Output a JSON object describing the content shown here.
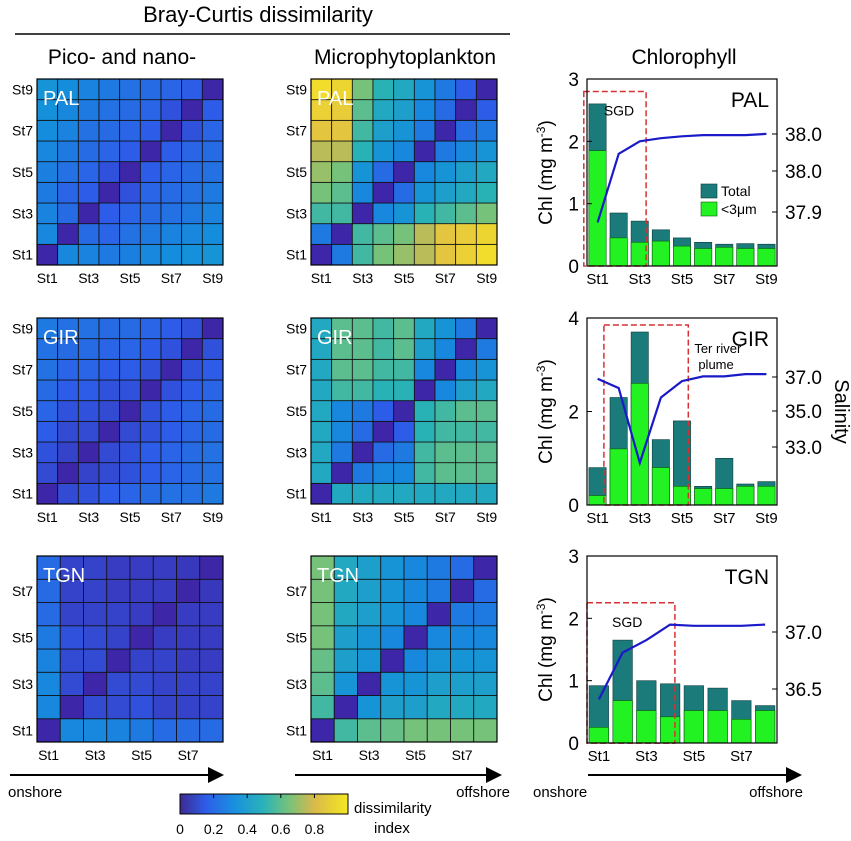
{
  "header": {
    "main_title": "Bray-Curtis dissimilarity",
    "col_titles": [
      "Pico- and nano-",
      "Microphytoplankton",
      "Chlorophyll"
    ]
  },
  "axis": {
    "onshore": "onshore",
    "offshore": "offshore"
  },
  "colorbar": {
    "label_line1": "dissimilarity",
    "label_line2": "index",
    "ticks": [
      "0",
      "0.2",
      "0.4",
      "0.6",
      "0.8"
    ],
    "range": [
      0,
      1
    ]
  },
  "chart_data": [
    {
      "type": "heatmap",
      "title": "PAL",
      "group": "Pico- and nano-",
      "xticks": [
        "St1",
        "St3",
        "St5",
        "St7",
        "St9"
      ],
      "yticks": [
        "St1",
        "St3",
        "St5",
        "St7",
        "St9"
      ],
      "values": [
        [
          0.0,
          0.3,
          0.28,
          0.25,
          0.27,
          0.3,
          0.32,
          0.33,
          0.35
        ],
        [
          0.3,
          0.0,
          0.2,
          0.18,
          0.22,
          0.25,
          0.28,
          0.3,
          0.32
        ],
        [
          0.28,
          0.2,
          0.0,
          0.15,
          0.18,
          0.2,
          0.22,
          0.25,
          0.28
        ],
        [
          0.25,
          0.18,
          0.15,
          0.0,
          0.12,
          0.18,
          0.2,
          0.22,
          0.25
        ],
        [
          0.27,
          0.22,
          0.18,
          0.12,
          0.0,
          0.15,
          0.18,
          0.2,
          0.22
        ],
        [
          0.3,
          0.25,
          0.2,
          0.18,
          0.15,
          0.0,
          0.15,
          0.18,
          0.2
        ],
        [
          0.32,
          0.28,
          0.22,
          0.2,
          0.18,
          0.15,
          0.0,
          0.12,
          0.18
        ],
        [
          0.33,
          0.3,
          0.25,
          0.22,
          0.2,
          0.18,
          0.12,
          0.0,
          0.15
        ],
        [
          0.35,
          0.32,
          0.28,
          0.25,
          0.22,
          0.2,
          0.18,
          0.15,
          0.0
        ]
      ]
    },
    {
      "type": "heatmap",
      "title": "PAL",
      "group": "Microphytoplankton",
      "xticks": [
        "St1",
        "St3",
        "St5",
        "St7",
        "St9"
      ],
      "yticks": [
        "St1",
        "St3",
        "St5",
        "St7",
        "St9"
      ],
      "values": [
        [
          0.0,
          0.25,
          0.55,
          0.65,
          0.7,
          0.75,
          0.85,
          0.9,
          0.95
        ],
        [
          0.25,
          0.0,
          0.55,
          0.6,
          0.65,
          0.75,
          0.85,
          0.88,
          0.92
        ],
        [
          0.55,
          0.55,
          0.0,
          0.3,
          0.35,
          0.5,
          0.55,
          0.6,
          0.65
        ],
        [
          0.65,
          0.6,
          0.3,
          0.0,
          0.2,
          0.35,
          0.4,
          0.45,
          0.5
        ],
        [
          0.7,
          0.65,
          0.35,
          0.2,
          0.0,
          0.3,
          0.35,
          0.4,
          0.45
        ],
        [
          0.75,
          0.75,
          0.5,
          0.35,
          0.3,
          0.0,
          0.25,
          0.3,
          0.35
        ],
        [
          0.85,
          0.85,
          0.55,
          0.4,
          0.35,
          0.25,
          0.0,
          0.2,
          0.25
        ],
        [
          0.9,
          0.88,
          0.6,
          0.45,
          0.4,
          0.3,
          0.2,
          0.0,
          0.15
        ],
        [
          0.95,
          0.92,
          0.65,
          0.5,
          0.45,
          0.35,
          0.25,
          0.15,
          0.0
        ]
      ]
    },
    {
      "type": "bar",
      "title": "PAL",
      "group": "Chlorophyll",
      "ylabel": "Chl (mg m-3)",
      "ylabel_main": "Chl (mg m",
      "ylabel_sup": "-3",
      "ylabel_close": ")",
      "ylim": [
        0,
        3
      ],
      "yticks": [
        "0",
        "1",
        "2",
        "3"
      ],
      "xticks": [
        "St1",
        "St3",
        "St5",
        "St7",
        "St9"
      ],
      "right_ticks": [
        "38.0",
        "38.0",
        "37.9"
      ],
      "right_label": "",
      "box_label": "SGD",
      "legend": [
        "Total",
        "<3μm"
      ],
      "series": [
        {
          "name": "Total",
          "values": [
            2.6,
            0.85,
            0.72,
            0.58,
            0.45,
            0.38,
            0.35,
            0.36,
            0.35
          ]
        },
        {
          "name": "<3μm",
          "values": [
            1.85,
            0.45,
            0.38,
            0.4,
            0.32,
            0.28,
            0.3,
            0.28,
            0.28
          ]
        }
      ],
      "salinity": [
        0.7,
        1.8,
        2.0,
        2.05,
        2.08,
        2.1,
        2.1,
        2.1,
        2.12
      ]
    },
    {
      "type": "heatmap",
      "title": "GIR",
      "group": "Pico- and nano-",
      "xticks": [
        "St1",
        "St3",
        "St5",
        "St7",
        "St9"
      ],
      "yticks": [
        "St1",
        "St3",
        "St5",
        "St7",
        "St9"
      ],
      "values": [
        [
          0.0,
          0.1,
          0.12,
          0.15,
          0.18,
          0.2,
          0.22,
          0.22,
          0.25
        ],
        [
          0.1,
          0.0,
          0.08,
          0.1,
          0.12,
          0.15,
          0.18,
          0.2,
          0.22
        ],
        [
          0.12,
          0.08,
          0.0,
          0.1,
          0.12,
          0.15,
          0.18,
          0.2,
          0.22
        ],
        [
          0.15,
          0.1,
          0.1,
          0.0,
          0.1,
          0.12,
          0.15,
          0.18,
          0.2
        ],
        [
          0.18,
          0.12,
          0.12,
          0.1,
          0.0,
          0.12,
          0.15,
          0.18,
          0.2
        ],
        [
          0.2,
          0.15,
          0.15,
          0.12,
          0.12,
          0.0,
          0.12,
          0.15,
          0.18
        ],
        [
          0.22,
          0.18,
          0.18,
          0.15,
          0.15,
          0.12,
          0.0,
          0.12,
          0.15
        ],
        [
          0.22,
          0.2,
          0.2,
          0.18,
          0.18,
          0.15,
          0.12,
          0.0,
          0.12
        ],
        [
          0.25,
          0.22,
          0.22,
          0.2,
          0.2,
          0.18,
          0.15,
          0.12,
          0.0
        ]
      ]
    },
    {
      "type": "heatmap",
      "title": "GIR",
      "group": "Microphytoplankton",
      "xticks": [
        "St1",
        "St3",
        "St5",
        "St7",
        "St9"
      ],
      "yticks": [
        "St1",
        "St3",
        "St5",
        "St7",
        "St9"
      ],
      "values": [
        [
          0.0,
          0.45,
          0.45,
          0.45,
          0.45,
          0.45,
          0.45,
          0.45,
          0.45
        ],
        [
          0.45,
          0.0,
          0.25,
          0.3,
          0.3,
          0.55,
          0.6,
          0.6,
          0.6
        ],
        [
          0.45,
          0.25,
          0.0,
          0.2,
          0.25,
          0.55,
          0.6,
          0.6,
          0.6
        ],
        [
          0.45,
          0.3,
          0.2,
          0.0,
          0.15,
          0.5,
          0.55,
          0.55,
          0.55
        ],
        [
          0.45,
          0.3,
          0.25,
          0.15,
          0.0,
          0.5,
          0.55,
          0.6,
          0.6
        ],
        [
          0.45,
          0.55,
          0.55,
          0.5,
          0.5,
          0.0,
          0.3,
          0.4,
          0.45
        ],
        [
          0.45,
          0.6,
          0.6,
          0.55,
          0.55,
          0.3,
          0.0,
          0.3,
          0.35
        ],
        [
          0.45,
          0.6,
          0.6,
          0.55,
          0.6,
          0.4,
          0.3,
          0.0,
          0.25
        ],
        [
          0.45,
          0.6,
          0.6,
          0.55,
          0.6,
          0.45,
          0.35,
          0.25,
          0.0
        ]
      ]
    },
    {
      "type": "bar",
      "title": "GIR",
      "group": "Chlorophyll",
      "ylabel": "Chl (mg m-3)",
      "ylabel_main": "Chl (mg m",
      "ylabel_sup": "-3",
      "ylabel_close": ")",
      "ylim": [
        0,
        4
      ],
      "yticks": [
        "0",
        "2",
        "4"
      ],
      "xticks": [
        "St1",
        "St3",
        "St5",
        "St7",
        "St9"
      ],
      "right_ticks": [
        "37.0",
        "35.0",
        "33.0"
      ],
      "right_label": "Salinity",
      "box_label": "Ter river plume",
      "box_label_line1": "Ter river",
      "box_label_line2": "plume",
      "series": [
        {
          "name": "Total",
          "values": [
            0.8,
            2.3,
            3.7,
            1.4,
            1.8,
            0.4,
            1.0,
            0.45,
            0.5
          ]
        },
        {
          "name": "<3μm",
          "values": [
            0.2,
            1.2,
            2.6,
            0.8,
            0.4,
            0.35,
            0.35,
            0.4,
            0.4
          ]
        }
      ],
      "salinity": [
        2.7,
        2.5,
        0.9,
        2.3,
        2.65,
        2.75,
        2.75,
        2.8,
        2.8
      ]
    },
    {
      "type": "heatmap",
      "title": "TGN",
      "group": "Pico- and nano-",
      "xticks": [
        "St1",
        "St3",
        "St5",
        "St7"
      ],
      "yticks": [
        "St1",
        "St3",
        "St5",
        "St7"
      ],
      "values": [
        [
          0.0,
          0.3,
          0.3,
          0.28,
          0.25,
          0.2,
          0.2,
          0.2
        ],
        [
          0.3,
          0.0,
          0.1,
          0.1,
          0.12,
          0.08,
          0.08,
          0.08
        ],
        [
          0.3,
          0.1,
          0.0,
          0.1,
          0.1,
          0.08,
          0.08,
          0.08
        ],
        [
          0.28,
          0.1,
          0.1,
          0.0,
          0.08,
          0.08,
          0.06,
          0.06
        ],
        [
          0.25,
          0.12,
          0.1,
          0.08,
          0.0,
          0.06,
          0.06,
          0.06
        ],
        [
          0.2,
          0.08,
          0.08,
          0.08,
          0.06,
          0.0,
          0.06,
          0.06
        ],
        [
          0.2,
          0.08,
          0.08,
          0.06,
          0.06,
          0.06,
          0.0,
          0.05
        ],
        [
          0.2,
          0.08,
          0.08,
          0.06,
          0.06,
          0.06,
          0.05,
          0.0
        ]
      ]
    },
    {
      "type": "heatmap",
      "title": "TGN",
      "group": "Microphytoplankton",
      "xticks": [
        "St1",
        "St3",
        "St5",
        "St7"
      ],
      "yticks": [
        "St1",
        "St3",
        "St5",
        "St7"
      ],
      "values": [
        [
          0.0,
          0.55,
          0.6,
          0.62,
          0.65,
          0.65,
          0.65,
          0.65
        ],
        [
          0.55,
          0.0,
          0.35,
          0.4,
          0.4,
          0.45,
          0.45,
          0.45
        ],
        [
          0.6,
          0.35,
          0.0,
          0.35,
          0.35,
          0.4,
          0.4,
          0.4
        ],
        [
          0.62,
          0.4,
          0.35,
          0.0,
          0.3,
          0.35,
          0.35,
          0.35
        ],
        [
          0.65,
          0.4,
          0.35,
          0.3,
          0.0,
          0.3,
          0.3,
          0.3
        ],
        [
          0.65,
          0.45,
          0.4,
          0.35,
          0.3,
          0.0,
          0.25,
          0.25
        ],
        [
          0.65,
          0.45,
          0.4,
          0.35,
          0.3,
          0.25,
          0.0,
          0.2
        ],
        [
          0.65,
          0.45,
          0.4,
          0.35,
          0.3,
          0.25,
          0.2,
          0.0
        ]
      ]
    },
    {
      "type": "bar",
      "title": "TGN",
      "group": "Chlorophyll",
      "ylabel": "Chl (mg m-3)",
      "ylabel_main": "Chl (mg m",
      "ylabel_sup": "-3",
      "ylabel_close": ")",
      "ylim": [
        0,
        3
      ],
      "yticks": [
        "0",
        "1",
        "2",
        "3"
      ],
      "xticks": [
        "St1",
        "St3",
        "St5",
        "St7"
      ],
      "right_ticks": [
        "37.0",
        "36.5"
      ],
      "right_label": "",
      "box_label": "SGD",
      "series": [
        {
          "name": "Total",
          "values": [
            0.92,
            1.65,
            1.0,
            0.95,
            0.92,
            0.88,
            0.68,
            0.6
          ]
        },
        {
          "name": "<3μm",
          "values": [
            0.25,
            0.68,
            0.52,
            0.42,
            0.52,
            0.52,
            0.38,
            0.52
          ]
        }
      ],
      "salinity": [
        0.7,
        1.45,
        1.65,
        1.9,
        1.88,
        1.88,
        1.88,
        1.9
      ]
    }
  ]
}
